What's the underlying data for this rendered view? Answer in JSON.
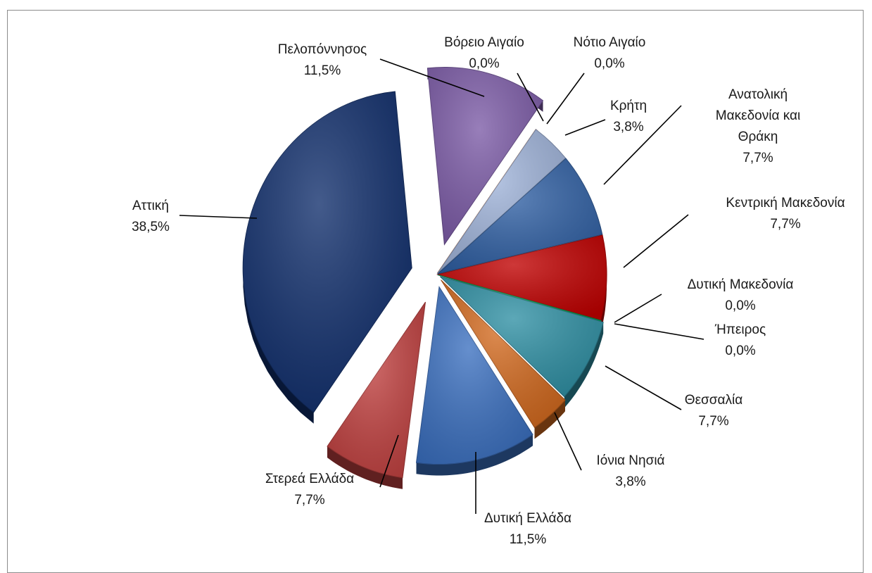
{
  "chart_data": {
    "type": "pie",
    "variant": "exploded-3d",
    "slices": [
      {
        "name": "Αττική",
        "label_lines": [
          "Αττική"
        ],
        "value_label": "38,5%",
        "value": 38.5,
        "color": "#0f2d6b"
      },
      {
        "name": "Πελοπόννησος",
        "label_lines": [
          "Πελοπόννησος"
        ],
        "value_label": "11,5%",
        "value": 11.5,
        "color": "#7b5aa6"
      },
      {
        "name": "Βόρειο Αιγαίο",
        "label_lines": [
          "Βόρειο Αιγαίο"
        ],
        "value_label": "0,0%",
        "value": 0.0,
        "color": "#c0504d"
      },
      {
        "name": "Νότιο Αιγαίο",
        "label_lines": [
          "Νότιο Αιγαίο"
        ],
        "value_label": "0,0%",
        "value": 0.0,
        "color": "#f79646"
      },
      {
        "name": "Κρήτη",
        "label_lines": [
          "Κρήτη"
        ],
        "value_label": "3,8%",
        "value": 3.8,
        "color": "#9fb3d9"
      },
      {
        "name": "Ανατολική Μακεδονία και Θράκη",
        "label_lines": [
          "Ανατολική",
          "Μακεδονία και",
          "Θράκη"
        ],
        "value_label": "7,7%",
        "value": 7.7,
        "color": "#2f5fa3"
      },
      {
        "name": "Κεντρική Μακεδονία",
        "label_lines": [
          "Κεντρική Μακεδονία"
        ],
        "value_label": "7,7%",
        "value": 7.7,
        "color": "#c00000"
      },
      {
        "name": "Δυτική Μακεδονία",
        "label_lines": [
          "Δυτική Μακεδονία"
        ],
        "value_label": "0,0%",
        "value": 0.0,
        "color": "#7030a0"
      },
      {
        "name": "Ήπειρος",
        "label_lines": [
          "Ήπειρος"
        ],
        "value_label": "0,0%",
        "value": 0.0,
        "color": "#00b050"
      },
      {
        "name": "Θεσσαλία",
        "label_lines": [
          "Θεσσαλία"
        ],
        "value_label": "7,7%",
        "value": 7.7,
        "color": "#2e8fa3"
      },
      {
        "name": "Ιόνια Νησιά",
        "label_lines": [
          "Ιόνια Νησιά"
        ],
        "value_label": "3,8%",
        "value": 3.8,
        "color": "#d2691e"
      },
      {
        "name": "Δυτική Ελλάδα",
        "label_lines": [
          "Δυτική Ελλάδα"
        ],
        "value_label": "11,5%",
        "value": 11.5,
        "color": "#3a6fbf"
      },
      {
        "name": "Στερεά Ελλάδα",
        "label_lines": [
          "Στερεά Ελλάδα"
        ],
        "value_label": "7,7%",
        "value": 7.7,
        "color": "#c0403f"
      }
    ],
    "legend": "none",
    "labels": "outside-with-leader-lines"
  }
}
